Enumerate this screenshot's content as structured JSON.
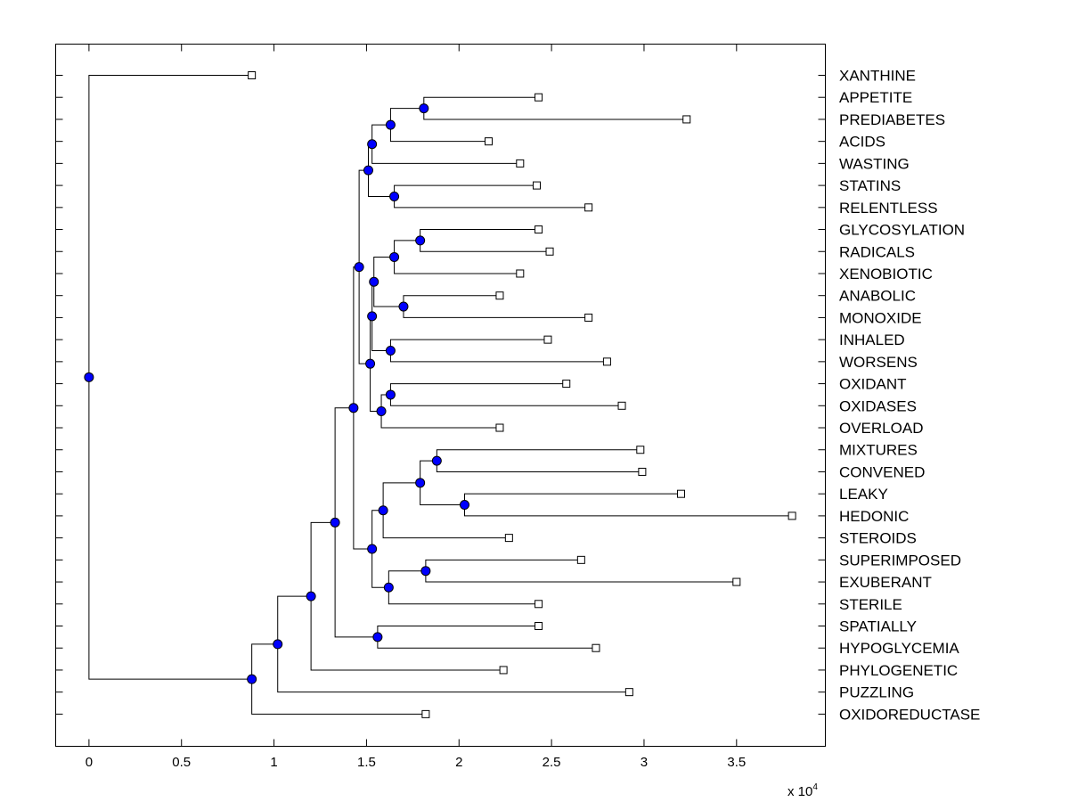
{
  "chart_data": {
    "type": "dendrogram",
    "title": "",
    "xlabel": "",
    "ylabel": "",
    "x_scale_label": "x 10",
    "x_scale_exponent": "4",
    "xlim": [
      -0.18,
      3.98
    ],
    "x_ticks": [
      0,
      0.5,
      1,
      1.5,
      2,
      2.5,
      3,
      3.5
    ],
    "x_tick_labels": [
      "0",
      "0.5",
      "1",
      "1.5",
      "2",
      "2.5",
      "3",
      "3.5"
    ],
    "grid": false,
    "node_color": "#0000ff",
    "root": {
      "x": 0,
      "children": [
        {
          "leaf": "XANTHINE",
          "x": 0.88
        },
        {
          "x": 0.88,
          "children": [
            {
              "x": 1.02,
              "children": [
                {
                  "x": 1.2,
                  "children": [
                    {
                      "x": 1.33,
                      "children": [
                        {
                          "x": 1.43,
                          "children": [
                            {
                              "x": 1.46,
                              "children": [
                                {
                                  "x": 1.51,
                                  "children": [
                                    {
                                      "x": 1.53,
                                      "children": [
                                        {
                                          "x": 1.63,
                                          "children": [
                                            {
                                              "x": 1.81,
                                              "children": [
                                                {
                                                  "leaf": "APPETITE",
                                                  "x": 2.43
                                                },
                                                {
                                                  "leaf": "PREDIABETES",
                                                  "x": 3.23
                                                }
                                              ]
                                            },
                                            {
                                              "leaf": "ACIDS",
                                              "x": 2.16
                                            }
                                          ]
                                        },
                                        {
                                          "leaf": "WASTING",
                                          "x": 2.33
                                        }
                                      ]
                                    },
                                    {
                                      "x": 1.65,
                                      "children": [
                                        {
                                          "leaf": "STATINS",
                                          "x": 2.42
                                        },
                                        {
                                          "leaf": "RELENTLESS",
                                          "x": 2.7
                                        }
                                      ]
                                    }
                                  ]
                                },
                                {
                                  "x": 1.52,
                                  "children": [
                                    {
                                      "x": 1.53,
                                      "children": [
                                        {
                                          "x": 1.54,
                                          "children": [
                                            {
                                              "x": 1.65,
                                              "children": [
                                                {
                                                  "x": 1.79,
                                                  "children": [
                                                    {
                                                      "leaf": "GLYCOSYLATION",
                                                      "x": 2.43
                                                    },
                                                    {
                                                      "leaf": "RADICALS",
                                                      "x": 2.49
                                                    }
                                                  ]
                                                },
                                                {
                                                  "leaf": "XENOBIOTIC",
                                                  "x": 2.33
                                                }
                                              ]
                                            },
                                            {
                                              "x": 1.7,
                                              "children": [
                                                {
                                                  "leaf": "ANABOLIC",
                                                  "x": 2.22
                                                },
                                                {
                                                  "leaf": "MONOXIDE",
                                                  "x": 2.7
                                                }
                                              ]
                                            }
                                          ]
                                        },
                                        {
                                          "x": 1.63,
                                          "children": [
                                            {
                                              "leaf": "INHALED",
                                              "x": 2.48
                                            },
                                            {
                                              "leaf": "WORSENS",
                                              "x": 2.8
                                            }
                                          ]
                                        }
                                      ]
                                    },
                                    {
                                      "x": 1.58,
                                      "children": [
                                        {
                                          "x": 1.63,
                                          "children": [
                                            {
                                              "leaf": "OXIDANT",
                                              "x": 2.58
                                            },
                                            {
                                              "leaf": "OXIDASES",
                                              "x": 2.88
                                            }
                                          ]
                                        },
                                        {
                                          "leaf": "OVERLOAD",
                                          "x": 2.22
                                        }
                                      ]
                                    }
                                  ]
                                }
                              ]
                            },
                            {
                              "x": 1.53,
                              "children": [
                                {
                                  "x": 1.59,
                                  "children": [
                                    {
                                      "x": 1.79,
                                      "children": [
                                        {
                                          "x": 1.88,
                                          "children": [
                                            {
                                              "leaf": "MIXTURES",
                                              "x": 2.98
                                            },
                                            {
                                              "leaf": "CONVENED",
                                              "x": 2.99
                                            }
                                          ]
                                        },
                                        {
                                          "x": 2.03,
                                          "children": [
                                            {
                                              "leaf": "LEAKY",
                                              "x": 3.2
                                            },
                                            {
                                              "leaf": "HEDONIC",
                                              "x": 3.8
                                            }
                                          ]
                                        }
                                      ]
                                    },
                                    {
                                      "leaf": "STEROIDS",
                                      "x": 2.27
                                    }
                                  ]
                                },
                                {
                                  "x": 1.62,
                                  "children": [
                                    {
                                      "x": 1.82,
                                      "children": [
                                        {
                                          "leaf": "SUPERIMPOSED",
                                          "x": 2.66
                                        },
                                        {
                                          "leaf": "EXUBERANT",
                                          "x": 3.5
                                        }
                                      ]
                                    },
                                    {
                                      "leaf": "STERILE",
                                      "x": 2.43
                                    }
                                  ]
                                }
                              ]
                            }
                          ]
                        },
                        {
                          "x": 1.56,
                          "children": [
                            {
                              "leaf": "SPATIALLY",
                              "x": 2.43
                            },
                            {
                              "leaf": "HYPOGLYCEMIA",
                              "x": 2.74
                            }
                          ]
                        }
                      ]
                    },
                    {
                      "leaf": "PHYLOGENETIC",
                      "x": 2.24
                    }
                  ]
                },
                {
                  "leaf": "PUZZLING",
                  "x": 2.92
                }
              ]
            },
            {
              "leaf": "OXIDOREDUCTASE",
              "x": 1.82
            }
          ]
        }
      ]
    }
  }
}
